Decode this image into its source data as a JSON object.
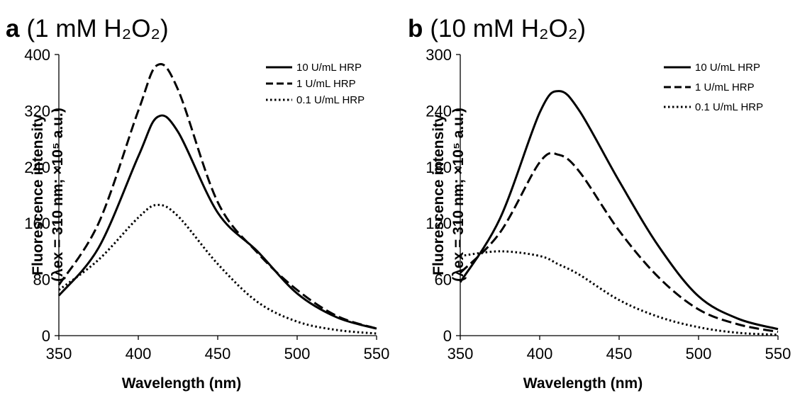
{
  "chart_data": [
    {
      "type": "line",
      "panel_letter": "a",
      "title": "(1 mM H₂O₂)",
      "xlabel": "Wavelength (nm)",
      "ylabel_line1": "Fluorescence intensity",
      "ylabel_line2": "(λex = 310 nm; ×10⁵ a.u.)",
      "xlim": [
        350,
        550
      ],
      "ylim": [
        0,
        400
      ],
      "xticks": [
        "350",
        "400",
        "450",
        "500",
        "550"
      ],
      "yticks": [
        "0",
        "80",
        "160",
        "240",
        "320",
        "400"
      ],
      "legend_position": "top-right",
      "x": [
        350,
        375,
        400,
        412,
        425,
        450,
        475,
        500,
        525,
        550
      ],
      "series": [
        {
          "name": "10 U/mL HRP",
          "style": "solid",
          "values": [
            57,
            125,
            255,
            311,
            290,
            175,
            120,
            60,
            26,
            10
          ]
        },
        {
          "name": "1 U/mL HRP",
          "style": "dashed",
          "values": [
            72,
            160,
            320,
            385,
            350,
            190,
            118,
            65,
            28,
            10
          ]
        },
        {
          "name": "0.1 U/mL HRP",
          "style": "dotted",
          "values": [
            65,
            108,
            168,
            186,
            170,
            102,
            48,
            20,
            8,
            3
          ]
        }
      ]
    },
    {
      "type": "line",
      "panel_letter": "b",
      "title": "(10 mM H₂O₂)",
      "xlabel": "Wavelength (nm)",
      "ylabel_line1": "Fluorescence intensity",
      "ylabel_line2": "(λex = 310 nm; ×10⁵ a.u.)",
      "xlim": [
        350,
        550
      ],
      "ylim": [
        0,
        300
      ],
      "xticks": [
        "350",
        "400",
        "450",
        "500",
        "550"
      ],
      "yticks": [
        "0",
        "60",
        "120",
        "180",
        "240",
        "300"
      ],
      "legend_position": "top-right",
      "x": [
        350,
        375,
        400,
        412,
        425,
        450,
        475,
        500,
        525,
        550
      ],
      "series": [
        {
          "name": "10 U/mL HRP",
          "style": "solid",
          "values": [
            57,
            125,
            238,
            261,
            240,
            165,
            95,
            42,
            18,
            7
          ]
        },
        {
          "name": "1 U/mL HRP",
          "style": "dashed",
          "values": [
            67,
            110,
            185,
            193,
            175,
            112,
            62,
            28,
            12,
            4
          ]
        },
        {
          "name": "0.1 U/mL HRP",
          "style": "dotted",
          "values": [
            85,
            90,
            85,
            76,
            65,
            38,
            20,
            9,
            3,
            1
          ]
        }
      ]
    }
  ]
}
